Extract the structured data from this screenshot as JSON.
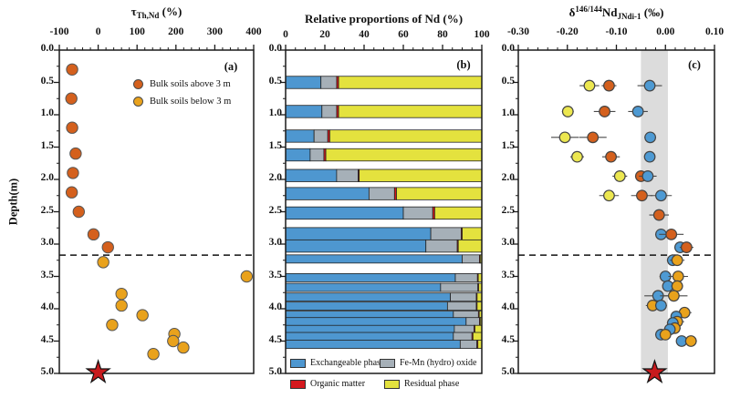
{
  "colors": {
    "orange_red": "#d4601d",
    "gold": "#e9a21c",
    "blue": "#4e9ad3",
    "yellow": "#ece750",
    "bar_blue": "#4e97d0",
    "bar_gray": "#a6b0b8",
    "bar_red": "#d5191e",
    "bar_yellow": "#e4e23e",
    "star": "#c81a1d",
    "band": "#dcdcdc",
    "axis": "#1a1a1a",
    "error_bar": "#4a4a4a"
  },
  "chart_data": [
    {
      "id": "a",
      "type": "scatter",
      "panel_label": "(a)",
      "title_parts": [
        {
          "text": "τ",
          "kind": "n"
        },
        {
          "text": "Th,Nd",
          "kind": "sub"
        },
        {
          "text": " (%)",
          "kind": "n"
        }
      ],
      "xlim": [
        -100,
        400
      ],
      "xticks": {
        "values": [
          -100,
          0,
          100,
          200,
          300,
          400
        ],
        "labels": [
          "-100",
          "0",
          "100",
          "200",
          "300",
          "400"
        ],
        "minor_step": 20
      },
      "ylim": [
        0,
        5
      ],
      "ylabel": "Depth(m)",
      "depth_ticks": {
        "values": [
          0,
          0.5,
          1,
          1.5,
          2,
          2.5,
          3,
          3.5,
          4,
          4.5,
          5
        ],
        "labels": [
          "0.0",
          "0.5",
          "1.0",
          "1.5",
          "2.0",
          "2.5",
          "3.0",
          "3.5",
          "4.0",
          "4.5",
          "5.0"
        ],
        "minor_step": 0.25
      },
      "dashed_line_depth": 3.17,
      "star": {
        "x": 0,
        "depth": 5
      },
      "legend": [
        {
          "label": "Bulk soils above 3 m",
          "color": "orange_red"
        },
        {
          "label": "Bulk soils below 3 m",
          "color": "gold"
        }
      ],
      "series": [
        {
          "name": "Bulk soils above 3 m",
          "color": "orange_red",
          "points": [
            {
              "depth": 0.3,
              "x": -67
            },
            {
              "depth": 0.75,
              "x": -69
            },
            {
              "depth": 1.2,
              "x": -67
            },
            {
              "depth": 1.6,
              "x": -58
            },
            {
              "depth": 1.9,
              "x": -65
            },
            {
              "depth": 2.2,
              "x": -68
            },
            {
              "depth": 2.5,
              "x": -50
            },
            {
              "depth": 2.85,
              "x": -12
            },
            {
              "depth": 3.05,
              "x": 25
            }
          ]
        },
        {
          "name": "Bulk soils below 3 m",
          "color": "gold",
          "points": [
            {
              "depth": 3.28,
              "x": 13
            },
            {
              "depth": 3.5,
              "x": 382
            },
            {
              "depth": 3.77,
              "x": 60
            },
            {
              "depth": 3.95,
              "x": 60
            },
            {
              "depth": 4.1,
              "x": 114
            },
            {
              "depth": 4.25,
              "x": 36
            },
            {
              "depth": 4.39,
              "x": 196
            },
            {
              "depth": 4.5,
              "x": 193
            },
            {
              "depth": 4.6,
              "x": 219
            },
            {
              "depth": 4.7,
              "x": 142
            }
          ]
        }
      ]
    },
    {
      "id": "b",
      "type": "stacked-bar-horizontal",
      "panel_label": "(b)",
      "title_parts": [
        {
          "text": "Relative proportions of Nd (%)",
          "kind": "n"
        }
      ],
      "xlim": [
        0,
        100
      ],
      "xticks": {
        "values": [
          0,
          20,
          40,
          60,
          80,
          100
        ],
        "labels": [
          "0",
          "20",
          "40",
          "60",
          "80",
          "100"
        ],
        "minor_step": 5
      },
      "ylim": [
        0,
        5
      ],
      "depth_ticks": {
        "values": [
          0,
          0.5,
          1,
          1.5,
          2,
          2.5,
          3,
          3.5,
          4,
          4.5,
          5
        ],
        "labels": [
          "0.0",
          "0.5",
          "1.0",
          "1.5",
          "2.0",
          "2.5",
          "3.0",
          "3.5",
          "4.0",
          "4.5",
          "5.0"
        ],
        "minor_step": 0.25
      },
      "segment_keys": [
        "exchangeable",
        "femn",
        "organic",
        "residual"
      ],
      "segment_colors": [
        "bar_blue",
        "bar_gray",
        "bar_red",
        "bar_yellow"
      ],
      "legend": [
        {
          "label": "Exchangeable phase",
          "color": "bar_blue"
        },
        {
          "label": "Fe-Mn (hydro) oxide",
          "color": "bar_gray"
        },
        {
          "label": "Organic matter",
          "color": "bar_red"
        },
        {
          "label": "Residual phase",
          "color": "bar_yellow"
        }
      ],
      "bars": [
        {
          "depth": 0.5,
          "values": [
            18,
            8,
            1,
            73
          ]
        },
        {
          "depth": 0.95,
          "values": [
            18.5,
            7.5,
            1,
            73
          ]
        },
        {
          "depth": 1.33,
          "values": [
            14.5,
            7,
            1,
            77.5
          ]
        },
        {
          "depth": 1.62,
          "values": [
            12.5,
            7,
            1,
            79.5
          ]
        },
        {
          "depth": 1.94,
          "values": [
            26,
            11,
            0.5,
            62.5
          ]
        },
        {
          "depth": 2.22,
          "values": [
            42.5,
            13,
            1,
            43.5
          ]
        },
        {
          "depth": 2.52,
          "values": [
            60,
            15,
            1,
            24
          ]
        },
        {
          "depth": 2.84,
          "values": [
            74,
            15.5,
            0.5,
            10
          ]
        },
        {
          "depth": 3.03,
          "values": [
            71.5,
            16,
            0.5,
            12
          ]
        },
        {
          "depth": 3.23,
          "values": [
            90,
            8.8,
            0.4,
            0.8
          ]
        },
        {
          "depth": 3.52,
          "values": [
            86.5,
            11.3,
            0.4,
            1.8
          ]
        },
        {
          "depth": 3.67,
          "values": [
            79,
            19,
            0.4,
            1.6
          ]
        },
        {
          "depth": 3.82,
          "values": [
            84,
            13.2,
            0.4,
            2.4
          ]
        },
        {
          "depth": 3.96,
          "values": [
            82.5,
            14.7,
            0.4,
            2.4
          ]
        },
        {
          "depth": 4.1,
          "values": [
            85.5,
            12.8,
            0.4,
            1.3
          ]
        },
        {
          "depth": 4.2,
          "values": [
            92,
            6.8,
            0.4,
            0.8
          ]
        },
        {
          "depth": 4.32,
          "values": [
            86,
            10,
            0.5,
            3.5
          ]
        },
        {
          "depth": 4.43,
          "values": [
            85.5,
            9.5,
            0.5,
            4.5
          ]
        },
        {
          "depth": 4.55,
          "values": [
            89,
            8.5,
            0.5,
            2
          ]
        }
      ]
    },
    {
      "id": "c",
      "type": "scatter-errorbar",
      "panel_label": "(c)",
      "title_parts": [
        {
          "text": "δ",
          "kind": "n"
        },
        {
          "text": "146/144",
          "kind": "sup"
        },
        {
          "text": "Nd",
          "kind": "n"
        },
        {
          "text": "JNdi-1",
          "kind": "sub"
        },
        {
          "text": " (‰)",
          "kind": "n"
        }
      ],
      "xlim": [
        -0.3,
        0.1
      ],
      "xticks": {
        "values": [
          -0.3,
          -0.2,
          -0.1,
          0,
          0.1
        ],
        "labels": [
          "-0.30",
          "-0.20",
          "-0.10",
          "0.00",
          "0.10"
        ],
        "minor_step": 0.02
      },
      "ylim": [
        0,
        5
      ],
      "depth_ticks": {
        "values": [
          0,
          0.5,
          1,
          1.5,
          2,
          2.5,
          3,
          3.5,
          4,
          4.5,
          5
        ],
        "labels": [
          "0.0",
          "0.5",
          "1.0",
          "1.5",
          "2.0",
          "2.5",
          "3.0",
          "3.5",
          "4.0",
          "4.5",
          "5.0"
        ],
        "minor_step": 0.25
      },
      "band": {
        "from": -0.05,
        "to": 0.005
      },
      "dashed_line_depth": 3.17,
      "star": {
        "x": -0.022,
        "depth": 5
      },
      "points": [
        {
          "depth": 0.55,
          "x": -0.155,
          "err": 0.02,
          "color": "yellow"
        },
        {
          "depth": 0.55,
          "x": -0.115,
          "err": 0.015,
          "color": "orange_red"
        },
        {
          "depth": 0.55,
          "x": -0.032,
          "err": 0.025,
          "color": "blue"
        },
        {
          "depth": 0.95,
          "x": -0.199,
          "err": 0.012,
          "color": "yellow"
        },
        {
          "depth": 0.95,
          "x": -0.124,
          "err": 0.022,
          "color": "orange_red"
        },
        {
          "depth": 0.95,
          "x": -0.056,
          "err": 0.02,
          "color": "blue"
        },
        {
          "depth": 1.35,
          "x": -0.205,
          "err": 0.028,
          "color": "yellow"
        },
        {
          "depth": 1.35,
          "x": -0.148,
          "err": 0.028,
          "color": "orange_red"
        },
        {
          "depth": 1.35,
          "x": -0.031,
          "err": 0.012,
          "color": "blue"
        },
        {
          "depth": 1.65,
          "x": -0.18,
          "err": 0.014,
          "color": "yellow"
        },
        {
          "depth": 1.65,
          "x": -0.111,
          "err": 0.018,
          "color": "orange_red"
        },
        {
          "depth": 1.65,
          "x": -0.032,
          "err": 0.01,
          "color": "blue"
        },
        {
          "depth": 1.95,
          "x": -0.093,
          "err": 0.015,
          "color": "yellow"
        },
        {
          "depth": 1.95,
          "x": -0.05,
          "err": 0.012,
          "color": "orange_red"
        },
        {
          "depth": 1.95,
          "x": -0.036,
          "err": 0.018,
          "color": "blue"
        },
        {
          "depth": 2.25,
          "x": -0.115,
          "err": 0.02,
          "color": "yellow"
        },
        {
          "depth": 2.25,
          "x": -0.048,
          "err": 0.022,
          "color": "orange_red"
        },
        {
          "depth": 2.25,
          "x": -0.009,
          "err": 0.022,
          "color": "blue"
        },
        {
          "depth": 2.55,
          "x": -0.013,
          "err": 0.02,
          "color": "orange_red"
        },
        {
          "depth": 2.85,
          "x": -0.009,
          "err": 0.012,
          "color": "blue"
        },
        {
          "depth": 2.85,
          "x": 0.012,
          "err": 0.025,
          "color": "orange_red"
        },
        {
          "depth": 3.05,
          "x": 0.03,
          "err": 0.012,
          "color": "blue"
        },
        {
          "depth": 3.05,
          "x": 0.043,
          "err": 0.014,
          "color": "orange_red"
        },
        {
          "depth": 3.25,
          "x": 0.015,
          "err": 0.012,
          "color": "blue"
        },
        {
          "depth": 3.25,
          "x": 0.024,
          "err": 0.015,
          "color": "gold"
        },
        {
          "depth": 3.5,
          "x": 0.0,
          "err": 0.012,
          "color": "blue"
        },
        {
          "depth": 3.5,
          "x": 0.026,
          "err": 0.02,
          "color": "gold"
        },
        {
          "depth": 3.65,
          "x": 0.005,
          "err": 0.01,
          "color": "blue"
        },
        {
          "depth": 3.65,
          "x": 0.024,
          "err": 0.012,
          "color": "gold"
        },
        {
          "depth": 3.8,
          "x": -0.015,
          "err": 0.028,
          "color": "blue"
        },
        {
          "depth": 3.8,
          "x": 0.017,
          "err": 0.028,
          "color": "gold"
        },
        {
          "depth": 3.95,
          "x": -0.026,
          "err": 0.014,
          "color": "gold"
        },
        {
          "depth": 3.95,
          "x": -0.009,
          "err": 0.012,
          "color": "blue"
        },
        {
          "depth": 4.06,
          "x": 0.039,
          "err": 0.014,
          "color": "gold"
        },
        {
          "depth": 4.12,
          "x": 0.022,
          "err": 0.01,
          "color": "blue"
        },
        {
          "depth": 4.2,
          "x": 0.024,
          "err": 0.014,
          "color": "gold"
        },
        {
          "depth": 4.22,
          "x": 0.015,
          "err": 0.012,
          "color": "blue"
        },
        {
          "depth": 4.3,
          "x": 0.019,
          "err": 0.012,
          "color": "gold"
        },
        {
          "depth": 4.32,
          "x": 0.009,
          "err": 0.01,
          "color": "blue"
        },
        {
          "depth": 4.4,
          "x": -0.009,
          "err": 0.012,
          "color": "blue"
        },
        {
          "depth": 4.4,
          "x": 0.0,
          "err": 0.012,
          "color": "gold"
        },
        {
          "depth": 4.5,
          "x": 0.033,
          "err": 0.01,
          "color": "blue"
        },
        {
          "depth": 4.5,
          "x": 0.052,
          "err": 0.012,
          "color": "gold"
        }
      ]
    }
  ]
}
